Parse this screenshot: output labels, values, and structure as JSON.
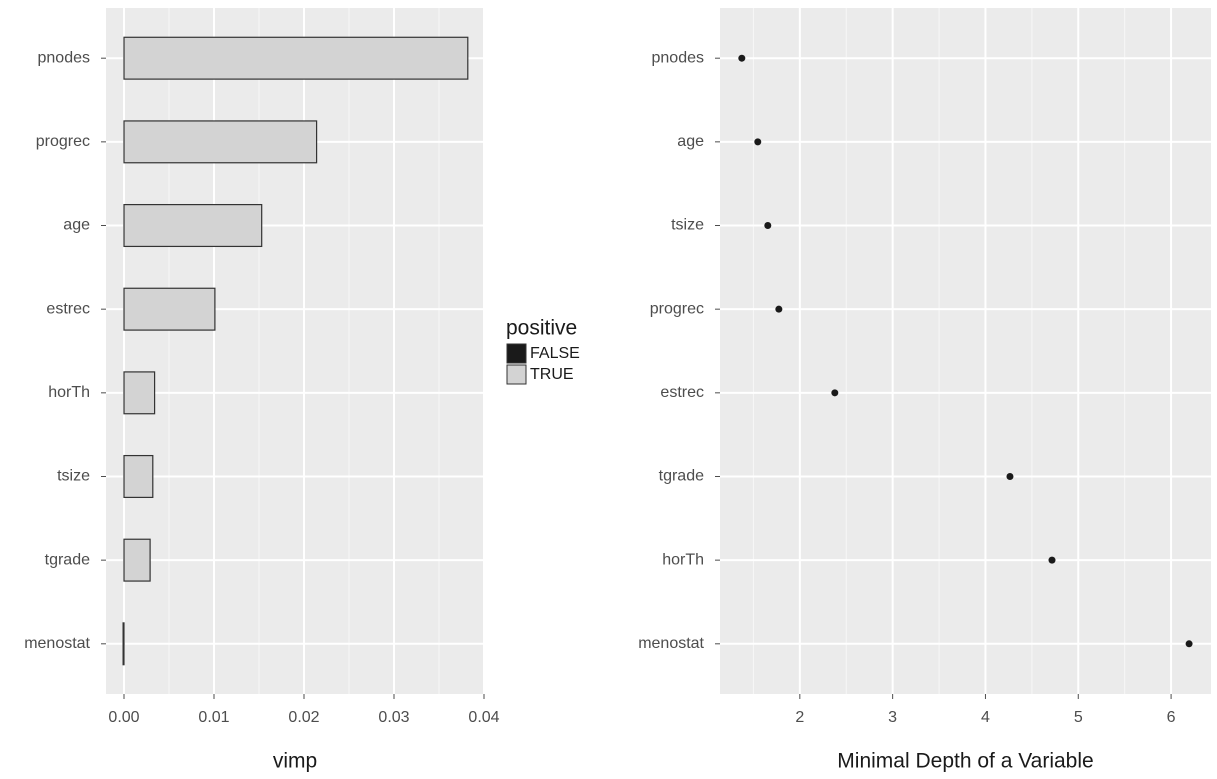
{
  "chart_data": [
    {
      "type": "bar",
      "orientation": "horizontal",
      "categories": [
        "pnodes",
        "progrec",
        "age",
        "estrec",
        "horTh",
        "tsize",
        "tgrade",
        "menostat"
      ],
      "series": [
        {
          "name": "FALSE",
          "color": "#1a1a1a",
          "values": [
            null,
            null,
            null,
            null,
            null,
            null,
            null,
            -0.0001
          ]
        },
        {
          "name": "TRUE",
          "color": "#d3d3d3",
          "values": [
            0.0382,
            0.0214,
            0.0153,
            0.0101,
            0.0034,
            0.0032,
            0.0029,
            null
          ]
        }
      ],
      "bar_edge_color": "#333333",
      "legend_title": "positive",
      "xlabel": "vimp",
      "xlim": [
        -0.002,
        0.04
      ],
      "xticks": [
        {
          "value": 0,
          "label": "0.00"
        },
        0.01,
        0.02,
        0.03,
        0.04
      ],
      "xminorticks": [
        0.005,
        0.015,
        0.025,
        0.035
      ],
      "grid": true
    },
    {
      "type": "dot",
      "categories": [
        "pnodes",
        "age",
        "tsize",
        "progrec",
        "estrec",
        "tgrade",
        "horTh",
        "menostat"
      ],
      "values": [
        1.375,
        1.547,
        1.655,
        1.774,
        2.377,
        4.264,
        4.717,
        6.194
      ],
      "color": "#1a1a1a",
      "xlabel": "Minimal Depth of a Variable",
      "xlim": [
        1.14,
        6.43
      ],
      "xticks": [
        2,
        3,
        4,
        5,
        6
      ],
      "xminorticks": [
        1.5,
        2.5,
        3.5,
        4.5,
        5.5
      ],
      "grid": true
    }
  ]
}
